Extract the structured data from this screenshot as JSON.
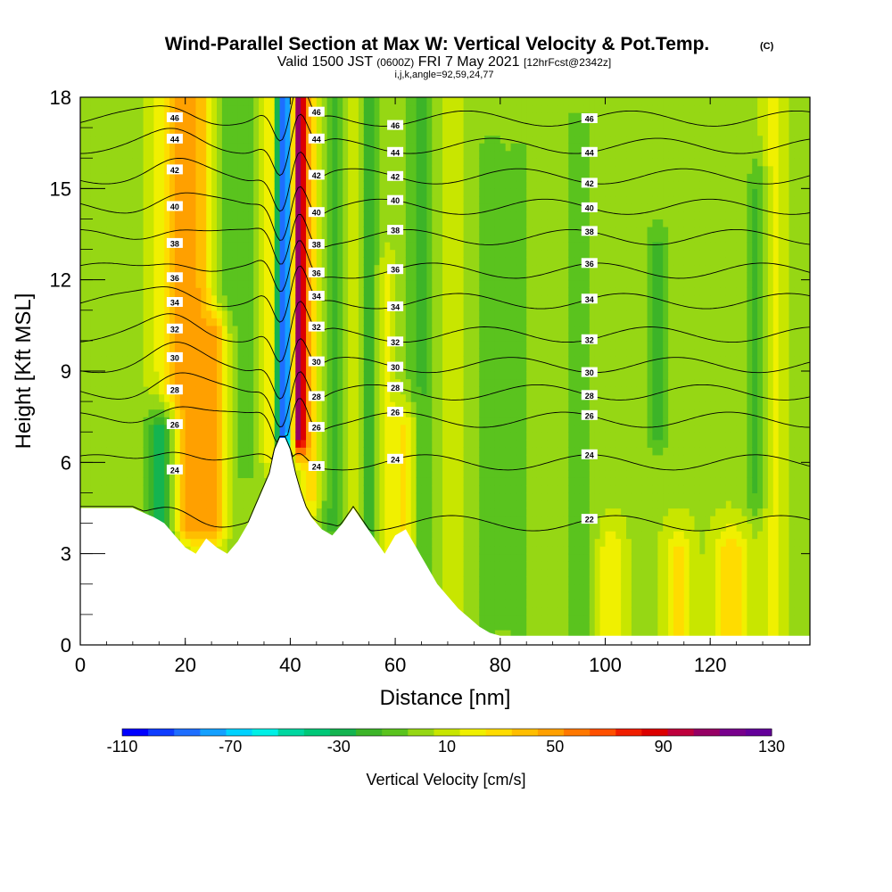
{
  "chart_data": {
    "type": "heatmap",
    "title": "Wind-Parallel Section at Max W: Vertical Velocity & Pot.Temp.",
    "title_mark": "(C)",
    "subtitle": {
      "valid": "Valid 1500 JST",
      "utc": "(0600Z)",
      "date": "FRI 7 May 2021",
      "forecast": "[12hrFcst@2342z]"
    },
    "index_line": "i,j,k,angle=92,59,24,77",
    "xlabel": "Distance [nm]",
    "ylabel": "Height [Kft MSL]",
    "xlim": [
      0,
      139
    ],
    "ylim": [
      0,
      18
    ],
    "x_ticks": [
      "0",
      "20",
      "40",
      "60",
      "80",
      "100",
      "120"
    ],
    "y_ticks": [
      "0",
      "3",
      "6",
      "9",
      "12",
      "15",
      "18"
    ],
    "grid": false,
    "colorbar": {
      "label": "Vertical Velocity [cm/s]",
      "range": [
        -110,
        130
      ],
      "step": 10,
      "tick_labels": [
        "-110",
        "-70",
        "-30",
        "10",
        "50",
        "90",
        "130"
      ],
      "colors": [
        "#0000ff",
        "#0f3cff",
        "#1e6eff",
        "#14a0ff",
        "#00d2ff",
        "#00f0e6",
        "#00d7a0",
        "#00c878",
        "#14b450",
        "#3cb428",
        "#5ac31e",
        "#96d714",
        "#c8e600",
        "#f0f000",
        "#ffdc00",
        "#ffbe00",
        "#ffa000",
        "#ff7800",
        "#ff5000",
        "#f01e00",
        "#dc0000",
        "#be003c",
        "#960064",
        "#78008c",
        "#64009a"
      ]
    },
    "potential_temperature_contours": {
      "series": [
        {
          "name": "22",
          "y": 4.0
        },
        {
          "name": "24",
          "y": 6.0
        },
        {
          "name": "26",
          "y": 7.4
        },
        {
          "name": "28",
          "y": 8.3
        },
        {
          "name": "30",
          "y": 9.2
        },
        {
          "name": "32",
          "y": 10.2
        },
        {
          "name": "34",
          "y": 11.3
        },
        {
          "name": "36",
          "y": 12.3
        },
        {
          "name": "38",
          "y": 13.4
        },
        {
          "name": "40",
          "y": 14.4
        },
        {
          "name": "42",
          "y": 15.4
        },
        {
          "name": "44",
          "y": 16.4
        },
        {
          "name": "46",
          "y": 17.3
        }
      ]
    },
    "terrain_kft": {
      "x": [
        0,
        10,
        14,
        16,
        18,
        20,
        22,
        24,
        26,
        28,
        30,
        32,
        34,
        36,
        37,
        38,
        39,
        40,
        41,
        42,
        43,
        44,
        46,
        48,
        50,
        52,
        54,
        56,
        58,
        60,
        62,
        64,
        66,
        68,
        70,
        72,
        74,
        76,
        78,
        80,
        139
      ],
      "y": [
        4.5,
        4.5,
        4.2,
        4.0,
        3.6,
        3.2,
        3.0,
        3.5,
        3.2,
        3.0,
        3.4,
        4.0,
        4.8,
        5.6,
        6.4,
        6.8,
        6.8,
        6.4,
        5.6,
        5.0,
        4.5,
        4.2,
        3.8,
        3.6,
        4.0,
        4.5,
        4.0,
        3.5,
        3.0,
        3.6,
        3.8,
        3.2,
        2.6,
        2.0,
        1.6,
        1.2,
        0.9,
        0.6,
        0.4,
        0.3,
        0.3
      ]
    },
    "vertical_velocity_features": [
      {
        "x": 16,
        "w": 3.0,
        "amp": -55,
        "z0": 3.5,
        "z1": 7.0
      },
      {
        "x": 19,
        "w": 4.0,
        "amp": 45,
        "z0": 4.0,
        "z1": 18.0
      },
      {
        "x": 23,
        "w": 3.0,
        "amp": 22,
        "z0": 4.0,
        "z1": 18.0
      },
      {
        "x": 26,
        "w": 2.5,
        "amp": 45,
        "z0": 4.0,
        "z1": 10.0
      },
      {
        "x": 28,
        "w": 3.0,
        "amp": -15,
        "z0": 4.0,
        "z1": 18.0
      },
      {
        "x": 33,
        "w": 2.5,
        "amp": -10,
        "z0": 6.0,
        "z1": 18.0
      },
      {
        "x": 36,
        "w": 2.0,
        "amp": 25,
        "z0": 6.5,
        "z1": 18.0
      },
      {
        "x": 39,
        "w": 1.6,
        "amp": -110,
        "z0": 7.0,
        "z1": 18.0
      },
      {
        "x": 41.5,
        "w": 1.5,
        "amp": 110,
        "z0": 7.0,
        "z1": 18.0
      },
      {
        "x": 44,
        "w": 2.0,
        "amp": 30,
        "z0": 5.0,
        "z1": 18.0
      },
      {
        "x": 48,
        "w": 2.5,
        "amp": -20,
        "z0": 4.0,
        "z1": 18.0
      },
      {
        "x": 52,
        "w": 2.0,
        "amp": 15,
        "z0": 4.0,
        "z1": 18.0
      },
      {
        "x": 55,
        "w": 2.0,
        "amp": -25,
        "z0": 3.5,
        "z1": 18.0
      },
      {
        "x": 58,
        "w": 2.0,
        "amp": 15,
        "z0": 3.0,
        "z1": 12.0
      },
      {
        "x": 62,
        "w": 2.5,
        "amp": 30,
        "z0": 3.0,
        "z1": 7.0
      },
      {
        "x": 65,
        "w": 3.0,
        "amp": -20,
        "z0": 2.0,
        "z1": 18.0
      },
      {
        "x": 70,
        "w": 2.5,
        "amp": 10,
        "z0": 1.0,
        "z1": 18.0
      },
      {
        "x": 78,
        "w": 3.0,
        "amp": -15,
        "z0": 1.0,
        "z1": 16.0
      },
      {
        "x": 84,
        "w": 3.0,
        "amp": -10,
        "z0": 0.0,
        "z1": 16.0
      },
      {
        "x": 95,
        "w": 3.0,
        "amp": -12,
        "z0": 0.0,
        "z1": 17.0
      },
      {
        "x": 101,
        "w": 2.5,
        "amp": 20,
        "z0": 0.0,
        "z1": 3.0
      },
      {
        "x": 110,
        "w": 2.0,
        "amp": -22,
        "z0": 7.0,
        "z1": 13.0
      },
      {
        "x": 114,
        "w": 2.5,
        "amp": 25,
        "z0": 0.0,
        "z1": 3.0
      },
      {
        "x": 124,
        "w": 3.0,
        "amp": 30,
        "z0": 0.0,
        "z1": 3.0
      },
      {
        "x": 129,
        "w": 2.0,
        "amp": -20,
        "z0": 5.0,
        "z1": 15.0
      },
      {
        "x": 132,
        "w": 2.0,
        "amp": 15,
        "z0": 0.0,
        "z1": 18.0
      }
    ],
    "background_value": 8
  }
}
